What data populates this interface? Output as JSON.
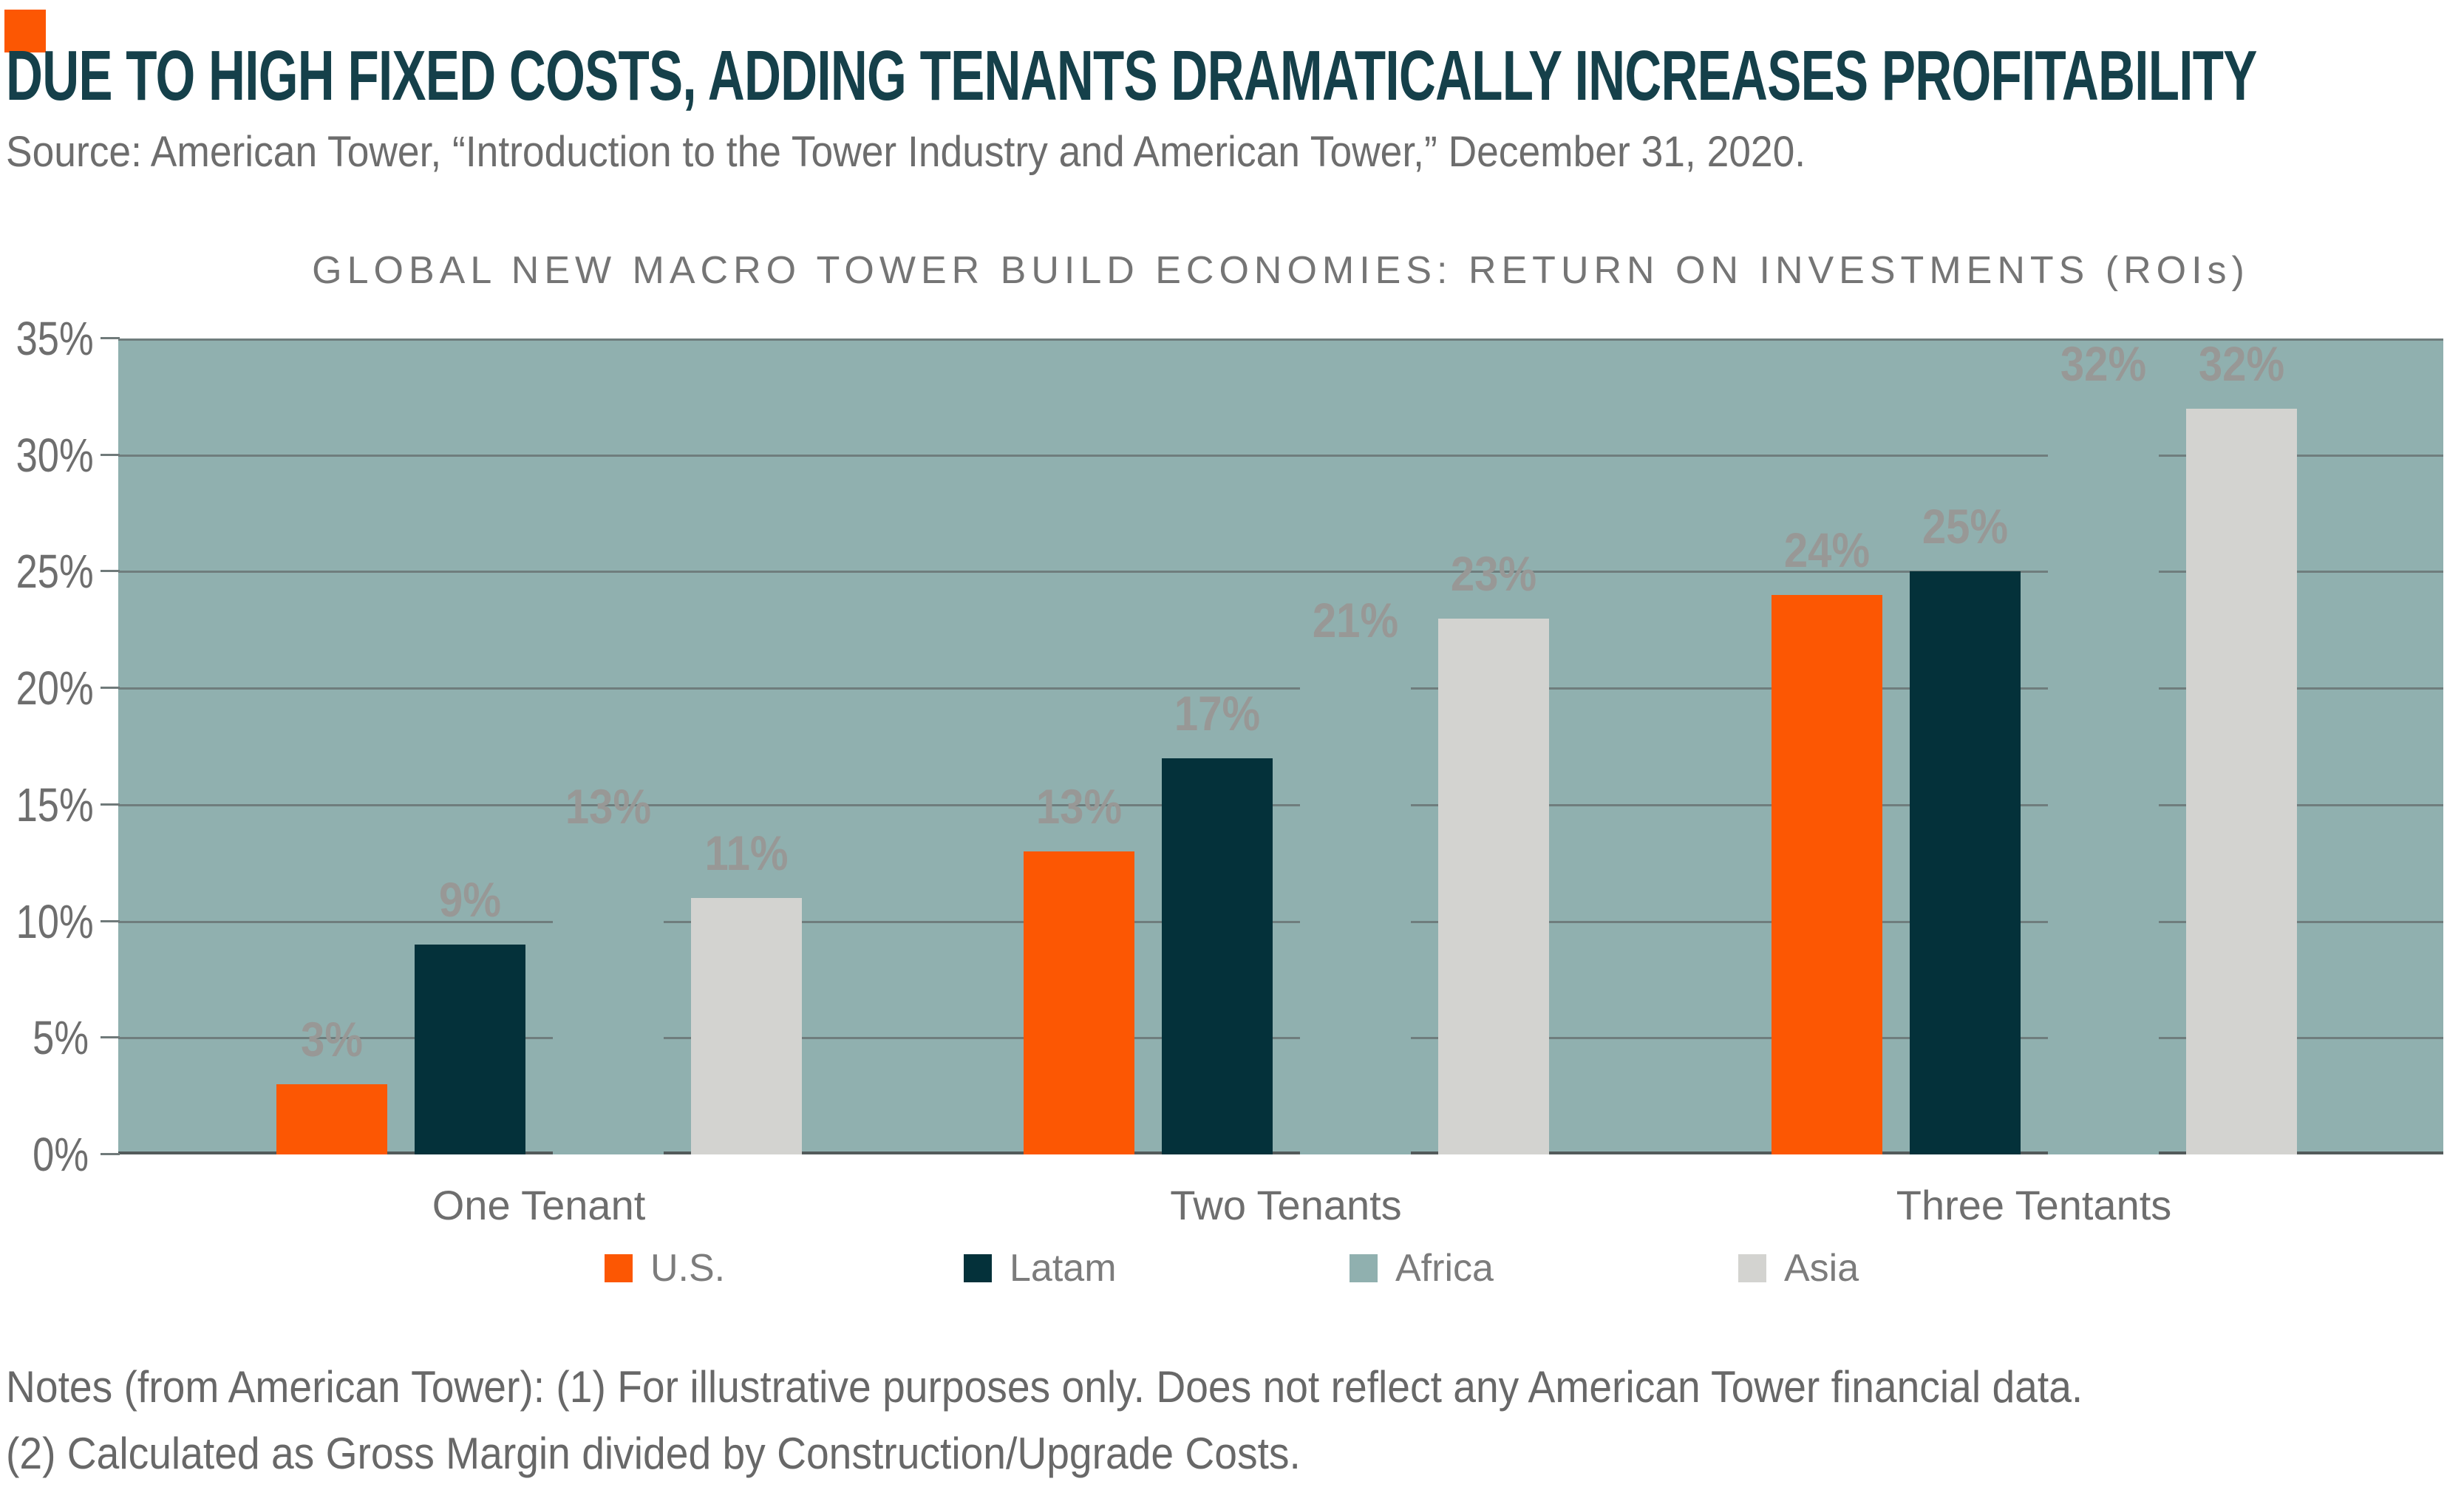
{
  "header": {
    "accent_color": "#FC5703",
    "title": "DUE TO HIGH FIXED COSTS, ADDING TENANTS DRAMATICALLY INCREASES PROFITABILITY",
    "source": "Source: American Tower, “Introduction to the Tower Industry and American Tower,” December 31, 2020."
  },
  "chart_data": {
    "type": "bar",
    "title": "GLOBAL NEW MACRO TOWER BUILD ECONOMIES: RETURN ON INVESTMENTS (ROIs)",
    "categories": [
      "One Tenant",
      "Two Tenants",
      "Three Tentants"
    ],
    "series": [
      {
        "name": "U.S.",
        "color": "#FC5703",
        "values": [
          3,
          13,
          24
        ]
      },
      {
        "name": "Latam",
        "color": "#04313A",
        "values": [
          9,
          17,
          25
        ]
      },
      {
        "name": "Africa",
        "color": "#90B0AF",
        "values": [
          13,
          21,
          32
        ]
      },
      {
        "name": "Asia",
        "color": "#D3D3D0",
        "values": [
          11,
          23,
          32
        ]
      }
    ],
    "data_labels": [
      [
        "3%",
        "9%",
        "13%",
        "11%"
      ],
      [
        "13%",
        "17%",
        "21%",
        "23%"
      ],
      [
        "24%",
        "25%",
        "32%",
        "32%"
      ]
    ],
    "xlabel": "",
    "ylabel": "",
    "ylim": [
      0,
      35
    ],
    "y_tick_labels": [
      "35%",
      "30%",
      "25%",
      "20%",
      "15%",
      "10%",
      "5%",
      "0%"
    ],
    "grid": true,
    "legend_position": "bottom",
    "plot_background": "#90B0AF",
    "gridline_color": "#6F7D7D",
    "baseline_color": "#535B5B",
    "data_label_color": "#989896"
  },
  "notes": {
    "line1": "Notes (from American Tower): (1) For illustrative purposes only. Does not reflect any American Tower financial data.",
    "line2": "(2) Calculated as Gross Margin divided by Construction/Upgrade Costs."
  }
}
